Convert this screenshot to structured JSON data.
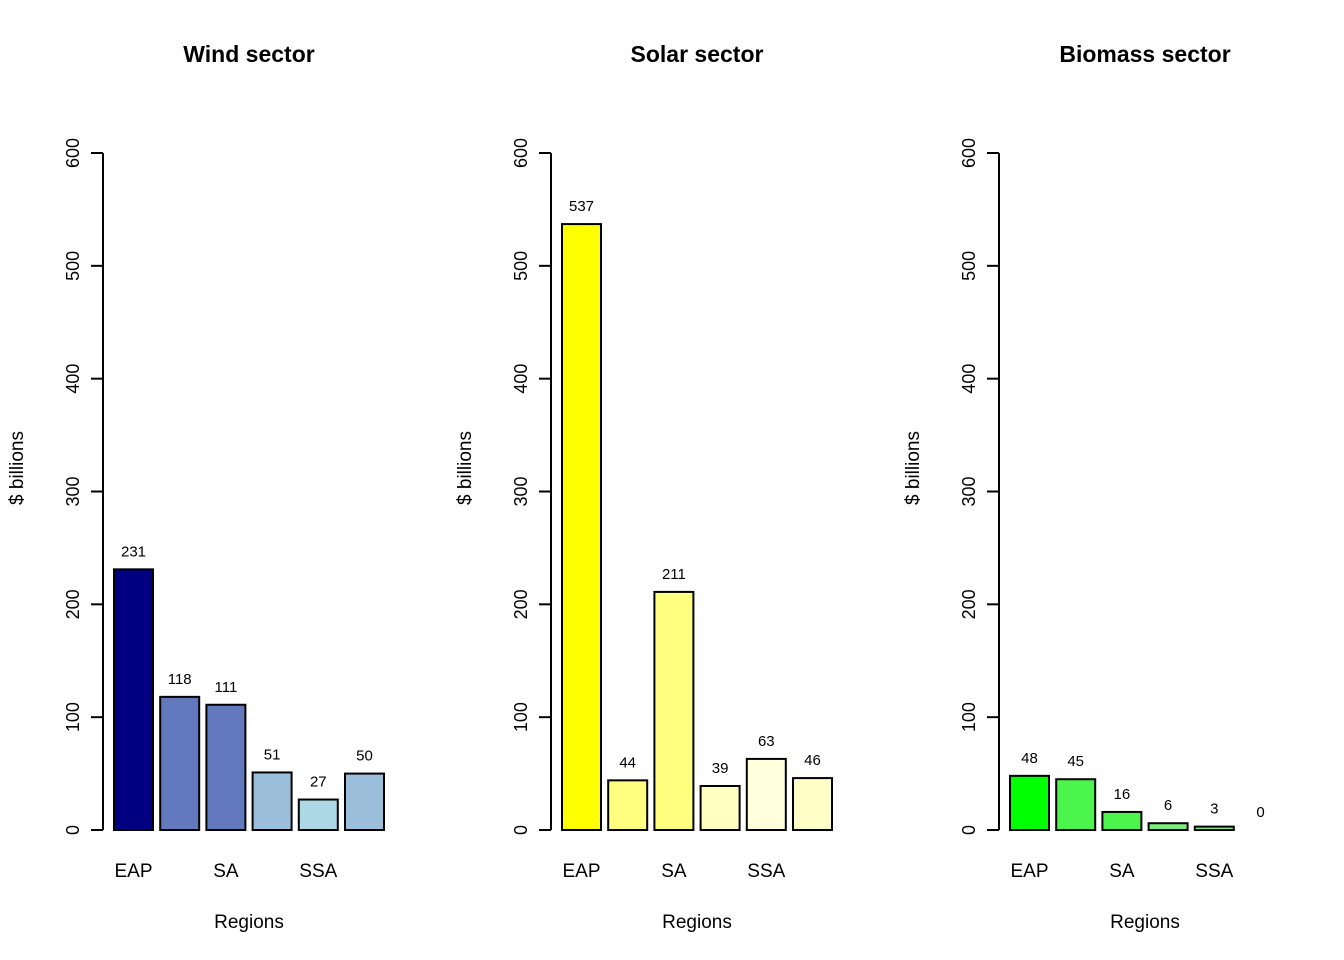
{
  "chart_data": [
    {
      "type": "bar",
      "title": "Wind sector",
      "xlabel": "Regions",
      "ylabel": "$ billions",
      "ylim": [
        0,
        600
      ],
      "yticks": [
        "0",
        "100",
        "200",
        "300",
        "400",
        "500",
        "600"
      ],
      "tick_labels": [
        "EAP",
        "SA",
        "SSA"
      ],
      "values": [
        231,
        118,
        111,
        51,
        27,
        50
      ],
      "value_labels": [
        "231",
        "118",
        "111",
        "51",
        "27",
        "50"
      ],
      "colors": [
        "#000080",
        "#6279BD",
        "#6279BD",
        "#9BBFDA",
        "#ADD8E6",
        "#9BBFDA"
      ]
    },
    {
      "type": "bar",
      "title": "Solar sector",
      "xlabel": "Regions",
      "ylabel": "$ billions",
      "ylim": [
        0,
        600
      ],
      "yticks": [
        "0",
        "100",
        "200",
        "300",
        "400",
        "500",
        "600"
      ],
      "tick_labels": [
        "EAP",
        "SA",
        "SSA"
      ],
      "values": [
        537,
        44,
        211,
        39,
        63,
        46
      ],
      "value_labels": [
        "537",
        "44",
        "211",
        "39",
        "63",
        "46"
      ],
      "colors": [
        "#FFFF00",
        "#FFFF80",
        "#FFFF80",
        "#FFFFC0",
        "#FFFFDC",
        "#FFFFC8"
      ]
    },
    {
      "type": "bar",
      "title": "Biomass sector",
      "xlabel": "Regions",
      "ylabel": "$ billions",
      "ylim": [
        0,
        600
      ],
      "yticks": [
        "0",
        "100",
        "200",
        "300",
        "400",
        "500",
        "600"
      ],
      "tick_labels": [
        "EAP",
        "SA",
        "SSA"
      ],
      "values": [
        48,
        45,
        16,
        6,
        3,
        0
      ],
      "value_labels": [
        "48",
        "45",
        "16",
        "6",
        "3",
        "0"
      ],
      "colors": [
        "#00FF00",
        "#4CF54C",
        "#4CF54C",
        "#7FEE7F",
        "#7FEE7F",
        "#7FEE7F"
      ]
    }
  ]
}
